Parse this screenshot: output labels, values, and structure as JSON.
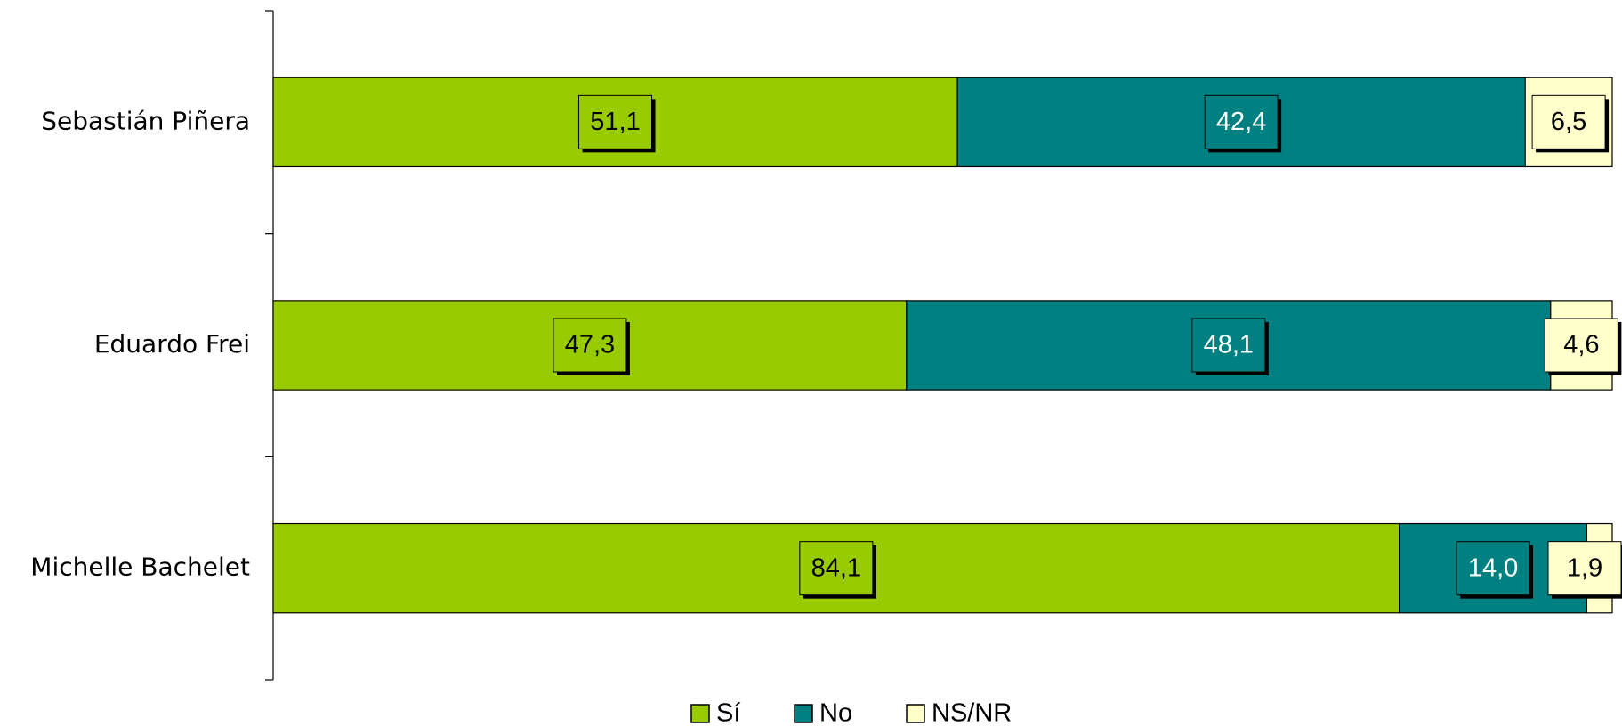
{
  "chart_data": {
    "type": "stacked-bar-horizontal",
    "categories": [
      "Sebastián Piñera",
      "Eduardo Frei",
      "Michelle Bachelet"
    ],
    "series": [
      {
        "name": "Sí",
        "color": "#99cc00",
        "text_color": "#000000",
        "values": [
          51.1,
          47.3,
          84.1
        ],
        "value_labels": [
          "51,1",
          "47,3",
          "84,1"
        ]
      },
      {
        "name": "No",
        "color": "#008080",
        "text_color": "#ffffff",
        "values": [
          42.4,
          48.1,
          14.0
        ],
        "value_labels": [
          "42,4",
          "48,1",
          "14,0"
        ]
      },
      {
        "name": "NS/NR",
        "color": "#ffffcc",
        "text_color": "#000000",
        "values": [
          6.5,
          4.6,
          1.9
        ],
        "value_labels": [
          "6,5",
          "4,6",
          "1,9"
        ]
      }
    ],
    "legend": "bottom"
  }
}
